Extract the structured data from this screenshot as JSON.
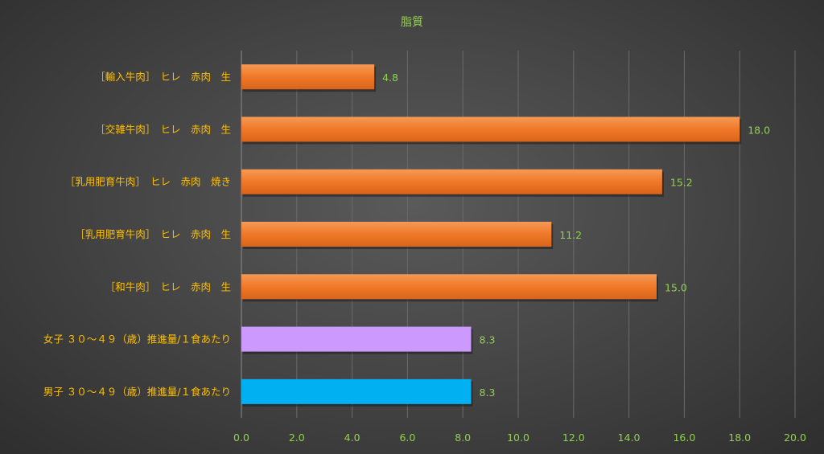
{
  "chart_data": {
    "type": "bar",
    "orientation": "horizontal",
    "title": "脂質",
    "categories": [
      "［輸入牛肉］　ヒレ　赤肉　生",
      "［交雑牛肉］　ヒレ　赤肉　生",
      "［乳用肥育牛肉］　ヒレ　赤肉　焼き",
      "［乳用肥育牛肉］　ヒレ　赤肉　生",
      "［和牛肉］　ヒレ　赤肉　生",
      "女子 ３０～４９（歳）推進量/１食あたり",
      "男子 ３０～４９（歳）推進量/１食あたり"
    ],
    "values": [
      4.8,
      18.0,
      15.2,
      11.2,
      15.0,
      8.3,
      8.3
    ],
    "value_labels": [
      "4.8",
      "18.0",
      "15.2",
      "11.2",
      "15.0",
      "8.3",
      "8.3"
    ],
    "bar_colors": [
      "#f07828",
      "#f07828",
      "#f07828",
      "#f07828",
      "#f07828",
      "#cc99ff",
      "#00b0f0"
    ],
    "xlim": [
      0,
      20
    ],
    "xticks": [
      "0.0",
      "2.0",
      "4.0",
      "6.0",
      "8.0",
      "10.0",
      "12.0",
      "14.0",
      "16.0",
      "18.0",
      "20.0"
    ],
    "grid": "vertical",
    "legend": "none",
    "colors": {
      "title": "#92d050",
      "category_labels": "#ffc000",
      "tick_labels": "#92d050",
      "data_labels": "#92d050"
    }
  }
}
